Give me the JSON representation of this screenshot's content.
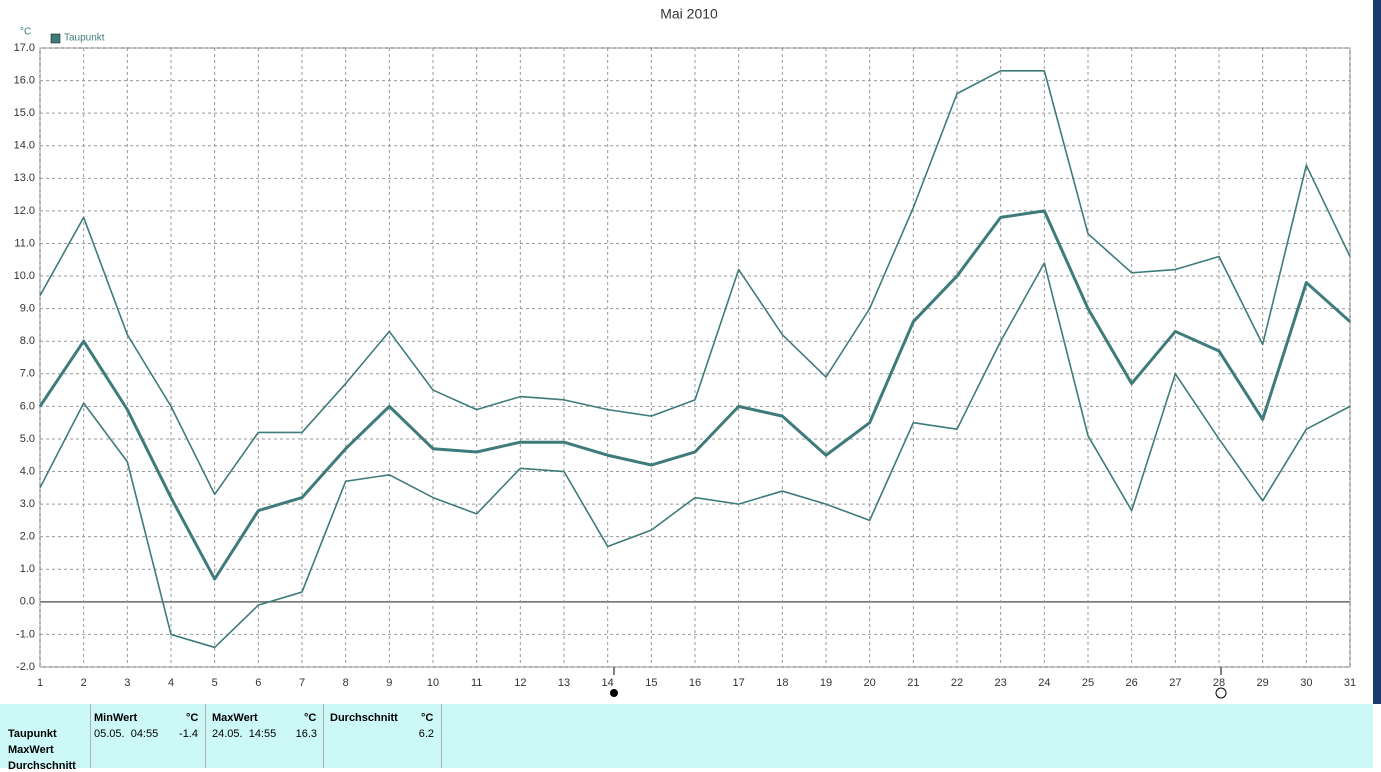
{
  "chart_data": {
    "type": "line",
    "title": "Mai 2010",
    "y_unit": "°C",
    "x": [
      1,
      2,
      3,
      4,
      5,
      6,
      7,
      8,
      9,
      10,
      11,
      12,
      13,
      14,
      15,
      16,
      17,
      18,
      19,
      20,
      21,
      22,
      23,
      24,
      25,
      26,
      27,
      28,
      29,
      30,
      31
    ],
    "xlim": [
      1,
      31
    ],
    "xticks": [
      1,
      2,
      3,
      4,
      5,
      6,
      7,
      8,
      9,
      10,
      11,
      12,
      13,
      14,
      15,
      16,
      17,
      18,
      19,
      20,
      21,
      22,
      23,
      24,
      25,
      26,
      27,
      28,
      29,
      30,
      31
    ],
    "ylim": [
      -2,
      17
    ],
    "yticks": [
      {
        "value": -2,
        "label": "-2.0"
      },
      {
        "value": -1,
        "label": "-1.0"
      },
      {
        "value": 0,
        "label": "0.0"
      },
      {
        "value": 1,
        "label": "1.0"
      },
      {
        "value": 2,
        "label": "2.0"
      },
      {
        "value": 3,
        "label": "3.0"
      },
      {
        "value": 4,
        "label": "4.0"
      },
      {
        "value": 5,
        "label": "5.0"
      },
      {
        "value": 6,
        "label": "6.0"
      },
      {
        "value": 7,
        "label": "7.0"
      },
      {
        "value": 8,
        "label": "8.0"
      },
      {
        "value": 9,
        "label": "9.0"
      },
      {
        "value": 10,
        "label": "10.0"
      },
      {
        "value": 11,
        "label": "11.0"
      },
      {
        "value": 12,
        "label": "12.0"
      },
      {
        "value": 13,
        "label": "13.0"
      },
      {
        "value": 14,
        "label": "14.0"
      },
      {
        "value": 15,
        "label": "15.0"
      },
      {
        "value": 16,
        "label": "16.0"
      },
      {
        "value": 17,
        "label": "17.0"
      }
    ],
    "grid": true,
    "legend": "top-left",
    "series": [
      {
        "color": "#3f7b7b",
        "values": [
          9.4,
          11.8,
          8.2,
          6.0,
          3.3,
          5.2,
          5.2,
          6.7,
          8.3,
          6.5,
          5.9,
          6.3,
          6.2,
          5.9,
          5.7,
          6.2,
          10.2,
          8.2,
          6.9,
          9.0,
          12.1,
          15.6,
          16.3,
          16.3,
          11.3,
          10.1,
          10.2,
          10.6,
          7.9,
          13.4,
          10.6
        ]
      },
      {
        "name": "Taupunkt",
        "color": "#3f7b7b",
        "values": [
          6.0,
          8.0,
          5.9,
          3.2,
          0.7,
          2.8,
          3.2,
          4.7,
          6.0,
          4.7,
          4.6,
          4.9,
          4.9,
          4.5,
          4.2,
          4.6,
          6.0,
          5.7,
          4.5,
          5.5,
          8.6,
          10.0,
          11.8,
          12.0,
          9.0,
          6.7,
          8.3,
          7.7,
          5.6,
          9.8,
          8.6
        ]
      },
      {
        "color": "#3f7b7b",
        "values": [
          3.5,
          6.1,
          4.3,
          -1.0,
          -1.4,
          -0.1,
          0.3,
          3.7,
          3.9,
          3.2,
          2.7,
          4.1,
          4.0,
          1.7,
          2.2,
          3.2,
          3.0,
          3.4,
          3.0,
          2.5,
          5.5,
          5.3,
          8.0,
          10.4,
          5.1,
          2.8,
          7.0,
          5.0,
          3.1,
          5.3,
          6.0
        ]
      }
    ]
  },
  "stats_table": {
    "row_labels": [
      "Taupunkt",
      "MaxWert",
      "Durchschnitt"
    ],
    "columns": [
      {
        "header": "MinWert",
        "unit": "°C",
        "time": "05.05.  04:55",
        "value": "-1.4"
      },
      {
        "header": "MaxWert",
        "unit": "°C",
        "time": "24.05.  14:55",
        "value": "16.3"
      },
      {
        "header": "Durchschnitt",
        "unit": "°C",
        "value": "6.2"
      }
    ]
  }
}
